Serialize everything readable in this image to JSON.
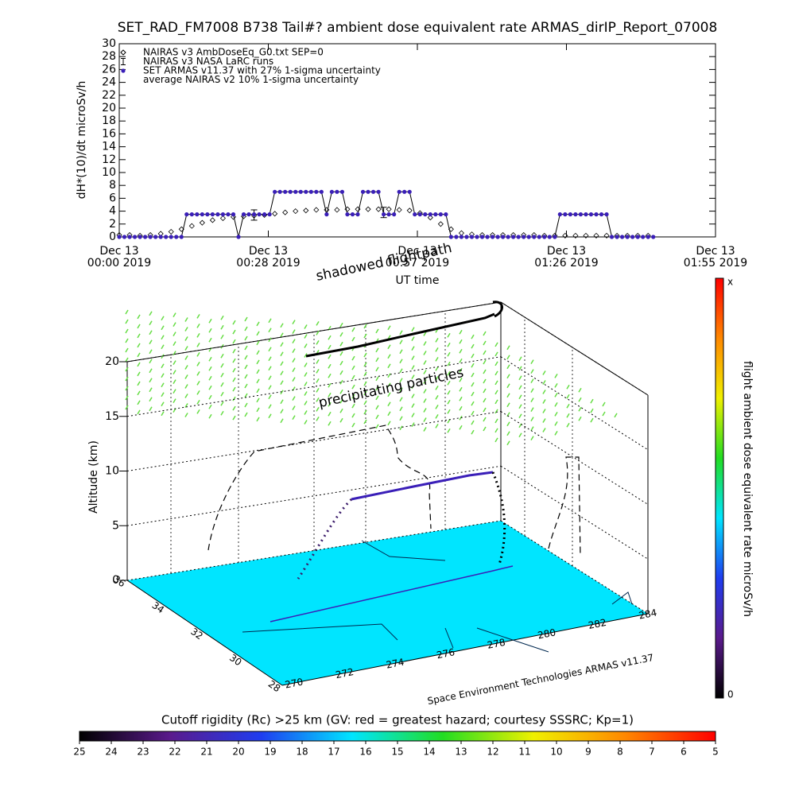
{
  "chart_data": [
    {
      "type": "line",
      "title": "SET_RAD_FM7008  B738 Tail#? ambient dose equivalent rate ARMAS_dirIP_Report_07008",
      "y_label": "dH*(10)/dt microSv/h",
      "x_label": "UT time",
      "xlim": [
        0,
        115
      ],
      "xticks": [
        {
          "value": 0,
          "label": [
            "Dec 13",
            "00:00 2019"
          ]
        },
        {
          "value": 28.75,
          "label": [
            "Dec 13",
            "00:28 2019"
          ]
        },
        {
          "value": 57.5,
          "label": [
            "Dec 13",
            "00:57 2019"
          ]
        },
        {
          "value": 86.25,
          "label": [
            "Dec 13",
            "01:26 2019"
          ]
        },
        {
          "value": 115,
          "label": [
            "Dec 13",
            "01:55 2019"
          ]
        }
      ],
      "ylim": [
        0,
        30
      ],
      "yticks": [
        0,
        2,
        4,
        6,
        8,
        10,
        12,
        14,
        16,
        18,
        20,
        22,
        24,
        26,
        28,
        30
      ],
      "series": [
        {
          "name": "NAIRAS v3 AmbDoseEq_G0.txt SEP=0",
          "marker": "diamond",
          "color": "#000000",
          "x": [
            0,
            2,
            4,
            6,
            8,
            10,
            12,
            14,
            16,
            18,
            20,
            22,
            24,
            26,
            28,
            30,
            32,
            34,
            36,
            38,
            40,
            42,
            44,
            46,
            48,
            50,
            52,
            54,
            56,
            58,
            60,
            62,
            64,
            66,
            68,
            70,
            72,
            74,
            76,
            78,
            80,
            82,
            84,
            86,
            88,
            90,
            92,
            94,
            96,
            98,
            100,
            102
          ],
          "values": [
            0.3,
            0.3,
            0.2,
            0.3,
            0.5,
            0.8,
            1.2,
            1.7,
            2.2,
            2.6,
            2.9,
            3.1,
            3.2,
            3.3,
            3.4,
            3.6,
            3.8,
            4,
            4.1,
            4.2,
            4.2,
            4.2,
            4.3,
            4.3,
            4.3,
            4.3,
            4.3,
            4.2,
            4.1,
            3.7,
            3,
            2,
            1.2,
            0.6,
            0.4,
            0.3,
            0.3,
            0.3,
            0.3,
            0.3,
            0.3,
            0.2,
            0.2,
            0.2,
            0.2,
            0.2,
            0.2,
            0.2,
            0.2,
            0.2,
            0.2,
            0.2
          ]
        },
        {
          "name": "NAIRAS v3 NASA LaRC runs",
          "marker": "errorbar",
          "color": "#000000",
          "x": [
            26,
            51
          ],
          "values": [
            3.4,
            3.8
          ],
          "errors": [
            0.8,
            0.8
          ]
        },
        {
          "name": "SET ARMAS v11.37 with 27% 1-sigma uncertainty",
          "marker": "dot",
          "color": "#3a1fb8",
          "line_color": "#000000",
          "x": [
            0,
            1,
            2,
            3,
            4,
            5,
            6,
            7,
            8,
            9,
            10,
            11,
            12,
            13,
            14,
            15,
            16,
            17,
            18,
            19,
            20,
            21,
            22,
            23,
            24,
            25,
            26,
            27,
            28,
            29,
            30,
            31,
            32,
            33,
            34,
            35,
            36,
            37,
            38,
            39,
            40,
            41,
            42,
            43,
            44,
            45,
            46,
            47,
            48,
            49,
            50,
            51,
            52,
            53,
            54,
            55,
            56,
            57,
            58,
            59,
            60,
            61,
            62,
            63,
            64,
            65,
            66,
            67,
            68,
            69,
            70,
            71,
            72,
            73,
            74,
            75,
            76,
            77,
            78,
            79,
            80,
            81,
            82,
            83,
            84,
            85,
            86,
            87,
            88,
            89,
            90,
            91,
            92,
            93,
            94,
            95,
            96,
            97,
            98,
            99,
            100,
            101,
            102,
            103
          ],
          "values": [
            0,
            0,
            0,
            0,
            0,
            0,
            0,
            0,
            0,
            0,
            0,
            0,
            0,
            3.5,
            3.5,
            3.5,
            3.5,
            3.5,
            3.5,
            3.5,
            3.5,
            3.5,
            3.5,
            0,
            3.5,
            3.5,
            3.5,
            3.5,
            3.5,
            3.5,
            7,
            7,
            7,
            7,
            7,
            7,
            7,
            7,
            7,
            7,
            3.5,
            7,
            7,
            7,
            3.5,
            3.5,
            3.5,
            7,
            7,
            7,
            7,
            3.5,
            3.5,
            3.5,
            7,
            7,
            7,
            3.5,
            3.5,
            3.5,
            3.5,
            3.5,
            3.5,
            3.5,
            0,
            0,
            0,
            0,
            0,
            0,
            0,
            0,
            0,
            0,
            0,
            0,
            0,
            0,
            0,
            0,
            0,
            0,
            0,
            0,
            0,
            3.5,
            3.5,
            3.5,
            3.5,
            3.5,
            3.5,
            3.5,
            3.5,
            3.5,
            3.5,
            0,
            0,
            0,
            0,
            0,
            0,
            0,
            0,
            0
          ]
        },
        {
          "name": "average NAIRAS v2 10% 1-sigma uncertainty",
          "marker": "none",
          "color": "#000000"
        }
      ]
    },
    {
      "type": "3d",
      "z_label": "Altitude (km)",
      "zlim": [
        0,
        20
      ],
      "zticks": [
        0,
        5,
        10,
        15,
        20
      ],
      "yticks": [
        36,
        34,
        32,
        30,
        28
      ],
      "xticks": [
        270,
        272,
        274,
        276,
        278,
        280,
        282,
        284
      ],
      "annotations": [
        "shadowed flightpath",
        "precipitating particles"
      ],
      "credit": "Space Environment Technologies ARMAS v11.37",
      "floor_color": "#00e5ff",
      "particle_color": "#66dd44"
    },
    {
      "type": "colorbar",
      "orientation": "vertical",
      "label": "flight ambient dose equivalent rate microSv/h",
      "end_labels": [
        "x",
        "0"
      ],
      "colors": [
        "#000000",
        "#5a1a8c",
        "#1f3df0",
        "#00e5ff",
        "#22dd22",
        "#f0f000",
        "#ff8800",
        "#ff0000"
      ]
    },
    {
      "type": "colorbar",
      "orientation": "horizontal",
      "label": "Cutoff rigidity (Rc) >25 km (GV: red = greatest hazard; courtesy SSSRC; Kp=1)",
      "lim": [
        25,
        5
      ],
      "ticks": [
        25,
        24,
        23,
        22,
        21,
        20,
        19,
        18,
        17,
        16,
        15,
        14,
        13,
        12,
        11,
        10,
        9,
        8,
        7,
        6,
        5
      ],
      "colors": [
        "#000000",
        "#5a1a8c",
        "#1f3df0",
        "#00e5ff",
        "#22dd22",
        "#f0f000",
        "#ff8800",
        "#ff0000"
      ]
    }
  ]
}
